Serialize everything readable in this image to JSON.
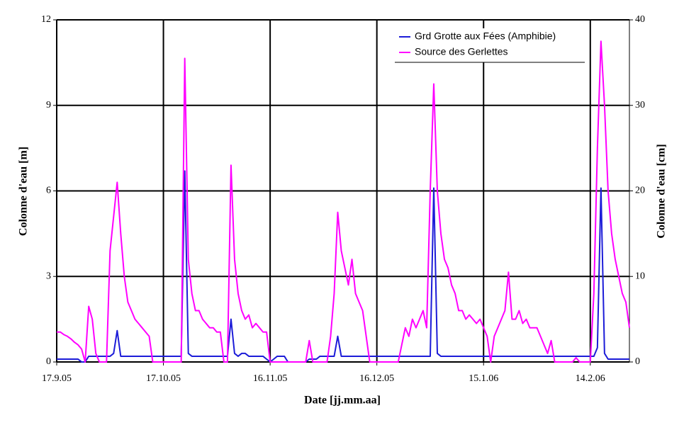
{
  "chart_data": {
    "type": "line",
    "xlabel": "Date [jj.mm.aa]",
    "ylabel": "Colonne d'eau [m]",
    "y2label": "Colonne d'eau [cm]",
    "x": [
      "17.9.05",
      "18.9.05",
      "19.9.05",
      "20.9.05",
      "21.9.05",
      "22.9.05",
      "23.9.05",
      "24.9.05",
      "25.9.05",
      "26.9.05",
      "27.9.05",
      "28.9.05",
      "29.9.05",
      "30.9.05",
      "1.10.05",
      "2.10.05",
      "3.10.05",
      "4.10.05",
      "5.10.05",
      "6.10.05",
      "7.10.05",
      "8.10.05",
      "9.10.05",
      "10.10.05",
      "11.10.05",
      "12.10.05",
      "13.10.05",
      "14.10.05",
      "15.10.05",
      "16.10.05",
      "17.10.05",
      "18.10.05",
      "19.10.05",
      "20.10.05",
      "21.10.05",
      "22.10.05",
      "23.10.05",
      "24.10.05",
      "25.10.05",
      "26.10.05",
      "27.10.05",
      "28.10.05",
      "29.10.05",
      "30.10.05",
      "31.10.05",
      "1.11.05",
      "2.11.05",
      "3.11.05",
      "4.11.05",
      "5.11.05",
      "6.11.05",
      "7.11.05",
      "8.11.05",
      "9.11.05",
      "10.11.05",
      "11.11.05",
      "12.11.05",
      "13.11.05",
      "14.11.05",
      "15.11.05",
      "16.11.05",
      "17.11.05",
      "18.11.05",
      "19.11.05",
      "20.11.05",
      "21.11.05",
      "22.11.05",
      "23.11.05",
      "24.11.05",
      "25.11.05",
      "26.11.05",
      "27.11.05",
      "28.11.05",
      "29.11.05",
      "30.11.05",
      "1.12.05",
      "2.12.05",
      "3.12.05",
      "4.12.05",
      "5.12.05",
      "6.12.05",
      "7.12.05",
      "8.12.05",
      "9.12.05",
      "10.12.05",
      "11.12.05",
      "12.12.05",
      "13.12.05",
      "14.12.05",
      "15.12.05",
      "16.12.05",
      "17.12.05",
      "18.12.05",
      "19.12.05",
      "20.12.05",
      "21.12.05",
      "22.12.05",
      "23.12.05",
      "24.12.05",
      "25.12.05",
      "26.12.05",
      "27.12.05",
      "28.12.05",
      "29.12.05",
      "30.12.05",
      "31.12.05",
      "1.1.06",
      "2.1.06",
      "3.1.06",
      "4.1.06",
      "5.1.06",
      "6.1.06",
      "7.1.06",
      "8.1.06",
      "9.1.06",
      "10.1.06",
      "11.1.06",
      "12.1.06",
      "13.1.06",
      "14.1.06",
      "15.1.06",
      "16.1.06",
      "17.1.06",
      "18.1.06",
      "19.1.06",
      "20.1.06",
      "21.1.06",
      "22.1.06",
      "23.1.06",
      "24.1.06",
      "25.1.06",
      "26.1.06",
      "27.1.06",
      "28.1.06",
      "29.1.06",
      "30.1.06",
      "31.1.06",
      "1.2.06",
      "2.2.06",
      "3.2.06",
      "4.2.06",
      "5.2.06",
      "6.2.06",
      "7.2.06",
      "8.2.06",
      "9.2.06",
      "10.2.06",
      "11.2.06",
      "12.2.06",
      "13.2.06",
      "14.2.06",
      "15.2.06",
      "16.2.06",
      "17.2.06",
      "18.2.06",
      "19.2.06",
      "20.2.06",
      "21.2.06",
      "22.2.06",
      "23.2.06",
      "24.2.06",
      "25.2.06"
    ],
    "series": [
      {
        "name": "Grd Grotte aux Fées (Amphibie)",
        "color": "#1c1cd8",
        "values": [
          0.1,
          0.1,
          0.1,
          0.1,
          0.1,
          0.1,
          0.1,
          0,
          0,
          0.2,
          0.2,
          0.2,
          0.2,
          0.2,
          0.2,
          0.2,
          0.3,
          1.1,
          0.2,
          0.2,
          0.2,
          0.2,
          0.2,
          0.2,
          0.2,
          0.2,
          0.2,
          0.2,
          0.2,
          0.2,
          0.2,
          0.2,
          0.2,
          0.2,
          0.2,
          0.2,
          6.7,
          0.3,
          0.2,
          0.2,
          0.2,
          0.2,
          0.2,
          0.2,
          0.2,
          0.2,
          0.2,
          0.2,
          0.2,
          1.5,
          0.3,
          0.2,
          0.3,
          0.3,
          0.2,
          0.2,
          0.2,
          0.2,
          0.2,
          0.1,
          0,
          0.1,
          0.2,
          0.2,
          0.2,
          0,
          0,
          0,
          0,
          0,
          0,
          0.1,
          0.1,
          0.1,
          0.2,
          0.2,
          0.2,
          0.2,
          0.2,
          0.9,
          0.2,
          0.2,
          0.2,
          0.2,
          0.2,
          0.2,
          0.2,
          0.2,
          0.2,
          0.2,
          0.2,
          0.2,
          0.2,
          0.2,
          0.2,
          0.2,
          0.2,
          0.2,
          0.2,
          0.2,
          0.2,
          0.2,
          0.2,
          0.2,
          0.2,
          0.2,
          6.1,
          0.3,
          0.2,
          0.2,
          0.2,
          0.2,
          0.2,
          0.2,
          0.2,
          0.2,
          0.2,
          0.2,
          0.2,
          0.2,
          0.2,
          0.2,
          0.2,
          0.2,
          0.2,
          0.2,
          0.2,
          0.2,
          0.2,
          0.2,
          0.2,
          0.2,
          0.2,
          0.2,
          0.2,
          0.2,
          0.2,
          0.2,
          0.2,
          0.2,
          0.2,
          0.2,
          0.2,
          0.2,
          0.2,
          0.2,
          0.2,
          0.2,
          0.2,
          0.2,
          0.2,
          0.2,
          0.5,
          6.1,
          0.3,
          0.1,
          0.1,
          0.1,
          0.1,
          0.1,
          0.1,
          0.1
        ]
      },
      {
        "name": "Source des Gerlettes",
        "color": "#ff00ff",
        "axis": "y2",
        "values": [
          3.5,
          3.5,
          3.2,
          3,
          2.7,
          2.3,
          2,
          1.5,
          0,
          6.5,
          5,
          1,
          0,
          0,
          0,
          13,
          17,
          21,
          15,
          10,
          7,
          6,
          5,
          4.5,
          4,
          3.5,
          3,
          0,
          0,
          0,
          0,
          0,
          0,
          0,
          0,
          0,
          35.5,
          12,
          8,
          6,
          6,
          5,
          4.5,
          4,
          4,
          3.5,
          3.5,
          0,
          0,
          23,
          12,
          8,
          6,
          5,
          5.5,
          4,
          4.5,
          4,
          3.5,
          3.5,
          0,
          0,
          0,
          0,
          0,
          0,
          0,
          0,
          0,
          0,
          0,
          2.5,
          0,
          0,
          0,
          0,
          0,
          3,
          8,
          17.5,
          13,
          11,
          9,
          12,
          8,
          7,
          6,
          3,
          0,
          0,
          0,
          0,
          0,
          0,
          0,
          0,
          0,
          2,
          4,
          3,
          5,
          4,
          5,
          6,
          4,
          20,
          32.5,
          20,
          15,
          12,
          11,
          9,
          8,
          6,
          6,
          5,
          5.5,
          5,
          4.5,
          5,
          4,
          3,
          0,
          3,
          4,
          5,
          6,
          10.5,
          5,
          5,
          6,
          4.5,
          5,
          4,
          4,
          4,
          3,
          2,
          1,
          2.5,
          0,
          0,
          0,
          0,
          0,
          0,
          0.5,
          0,
          0,
          0,
          0,
          8,
          25,
          37.5,
          30,
          20,
          15,
          12,
          10,
          8,
          7,
          4
        ]
      }
    ],
    "xlim": [
      "17.9.05",
      "25.2.06"
    ],
    "xticks": [
      "17.9.05",
      "17.10.05",
      "16.11.05",
      "16.12.05",
      "15.1.06",
      "14.2.06"
    ],
    "ylim": [
      0,
      12
    ],
    "yticks": [
      0,
      3,
      6,
      9,
      12
    ],
    "y2lim": [
      0,
      40
    ],
    "y2ticks": [
      0,
      10,
      20,
      30,
      40
    ],
    "grid": true,
    "legend": "upper right"
  }
}
